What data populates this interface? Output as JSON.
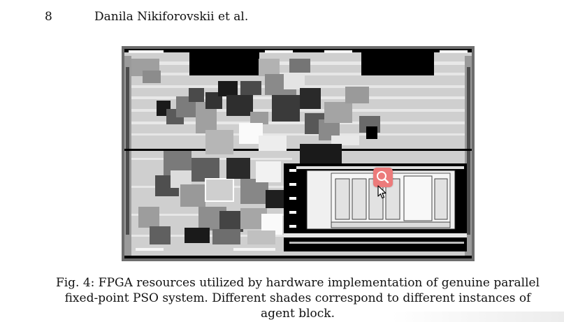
{
  "header": {
    "page_number": "8",
    "authors": "Danila Nikiforovskii et al."
  },
  "figure": {
    "caption": "Fig. 4: FPGA resources utilized by hardware implementation of genuine parallel fixed-point PSO system. Different shades correspond to different instances of agent block."
  },
  "icons": {
    "zoom": "magnifier-icon",
    "cursor": "mouse-pointer-icon"
  },
  "colors": {
    "zoom_badge": "#ec7b7b",
    "figure_border": "#6d6d6d"
  }
}
